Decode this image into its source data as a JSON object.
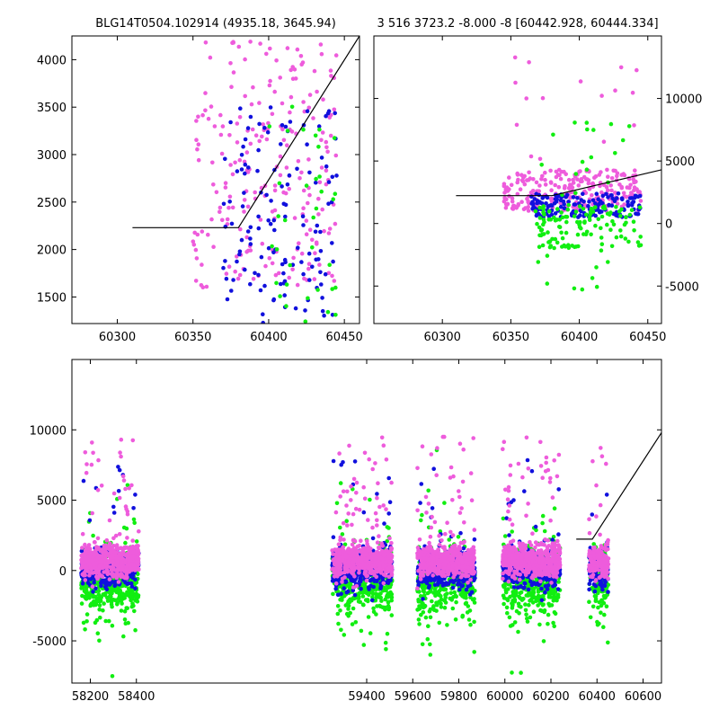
{
  "colors": {
    "magenta": "#ee5cdc",
    "blue": "#1010dd",
    "green": "#11ee11",
    "line": "#000000"
  },
  "chart_data": [
    {
      "id": "top-left",
      "type": "scatter",
      "title": "BLG14T0504.102914 (4935.18, 3645.94)",
      "xlim": [
        60270,
        60460
      ],
      "ylim": [
        1220,
        4250
      ],
      "xticks": [
        60300,
        60350,
        60400,
        60450
      ],
      "yticks": [
        1500,
        2000,
        2500,
        3000,
        3500,
        4000
      ],
      "ytick_side": "left",
      "model_line": [
        [
          60310,
          2230
        ],
        [
          60380,
          2230
        ],
        [
          60460,
          4250
        ]
      ],
      "series_clusters": [
        {
          "color": "magenta",
          "x": [
            60350,
            60445
          ],
          "y": [
            1600,
            4200
          ],
          "n": 230,
          "seed": 11
        },
        {
          "color": "blue",
          "x": [
            60370,
            60445
          ],
          "y": [
            1220,
            3500
          ],
          "n": 130,
          "seed": 12
        },
        {
          "color": "green",
          "x": [
            60400,
            60445
          ],
          "y": [
            1220,
            3600
          ],
          "n": 35,
          "seed": 13
        }
      ]
    },
    {
      "id": "top-right",
      "type": "scatter",
      "title": "3 516 3723.2 -8.000 -8 [60442.928, 60444.334]",
      "xlim": [
        60250,
        60460
      ],
      "ylim": [
        -8000,
        15000
      ],
      "xticks": [
        60300,
        60350,
        60400,
        60450
      ],
      "yticks": [
        -5000,
        0,
        5000,
        10000
      ],
      "ytick_side": "right",
      "model_line": [
        [
          60310,
          2230
        ],
        [
          60380,
          2230
        ],
        [
          60460,
          4300
        ]
      ],
      "series_clusters": [
        {
          "color": "magenta",
          "x": [
            60345,
            60445
          ],
          "y": [
            1000,
            4300
          ],
          "n": 260,
          "seed": 21
        },
        {
          "color": "blue",
          "x": [
            60365,
            60445
          ],
          "y": [
            500,
            2400
          ],
          "n": 160,
          "seed": 22
        },
        {
          "color": "green",
          "x": [
            60368,
            60445
          ],
          "y": [
            -2000,
            1500
          ],
          "n": 120,
          "seed": 23
        },
        {
          "color": "green",
          "x": [
            60368,
            60445
          ],
          "y": [
            -5500,
            8500
          ],
          "n": 30,
          "seed": 24
        },
        {
          "color": "magenta",
          "x": [
            60350,
            60445
          ],
          "y": [
            5000,
            14200
          ],
          "n": 16,
          "seed": 25
        }
      ]
    },
    {
      "id": "bottom",
      "type": "scatter",
      "title": "",
      "xlim": [
        58120,
        60680
      ],
      "ylim": [
        -8000,
        15000
      ],
      "xticks": [
        58200,
        58400,
        59400,
        59600,
        59800,
        60000,
        60200,
        60400,
        60600
      ],
      "yticks": [
        -5000,
        0,
        5000,
        10000
      ],
      "ytick_side": "left",
      "model_line": [
        [
          60310,
          2230
        ],
        [
          60380,
          2230
        ],
        [
          60680,
          9800
        ]
      ],
      "seasons": [
        {
          "x": [
            58160,
            58410
          ],
          "seed": 31
        },
        {
          "x": [
            59250,
            59510
          ],
          "seed": 32
        },
        {
          "x": [
            59620,
            59870
          ],
          "seed": 33
        },
        {
          "x": [
            59990,
            60240
          ],
          "seed": 34
        },
        {
          "x": [
            60365,
            60450
          ],
          "seed": 35
        }
      ]
    }
  ]
}
